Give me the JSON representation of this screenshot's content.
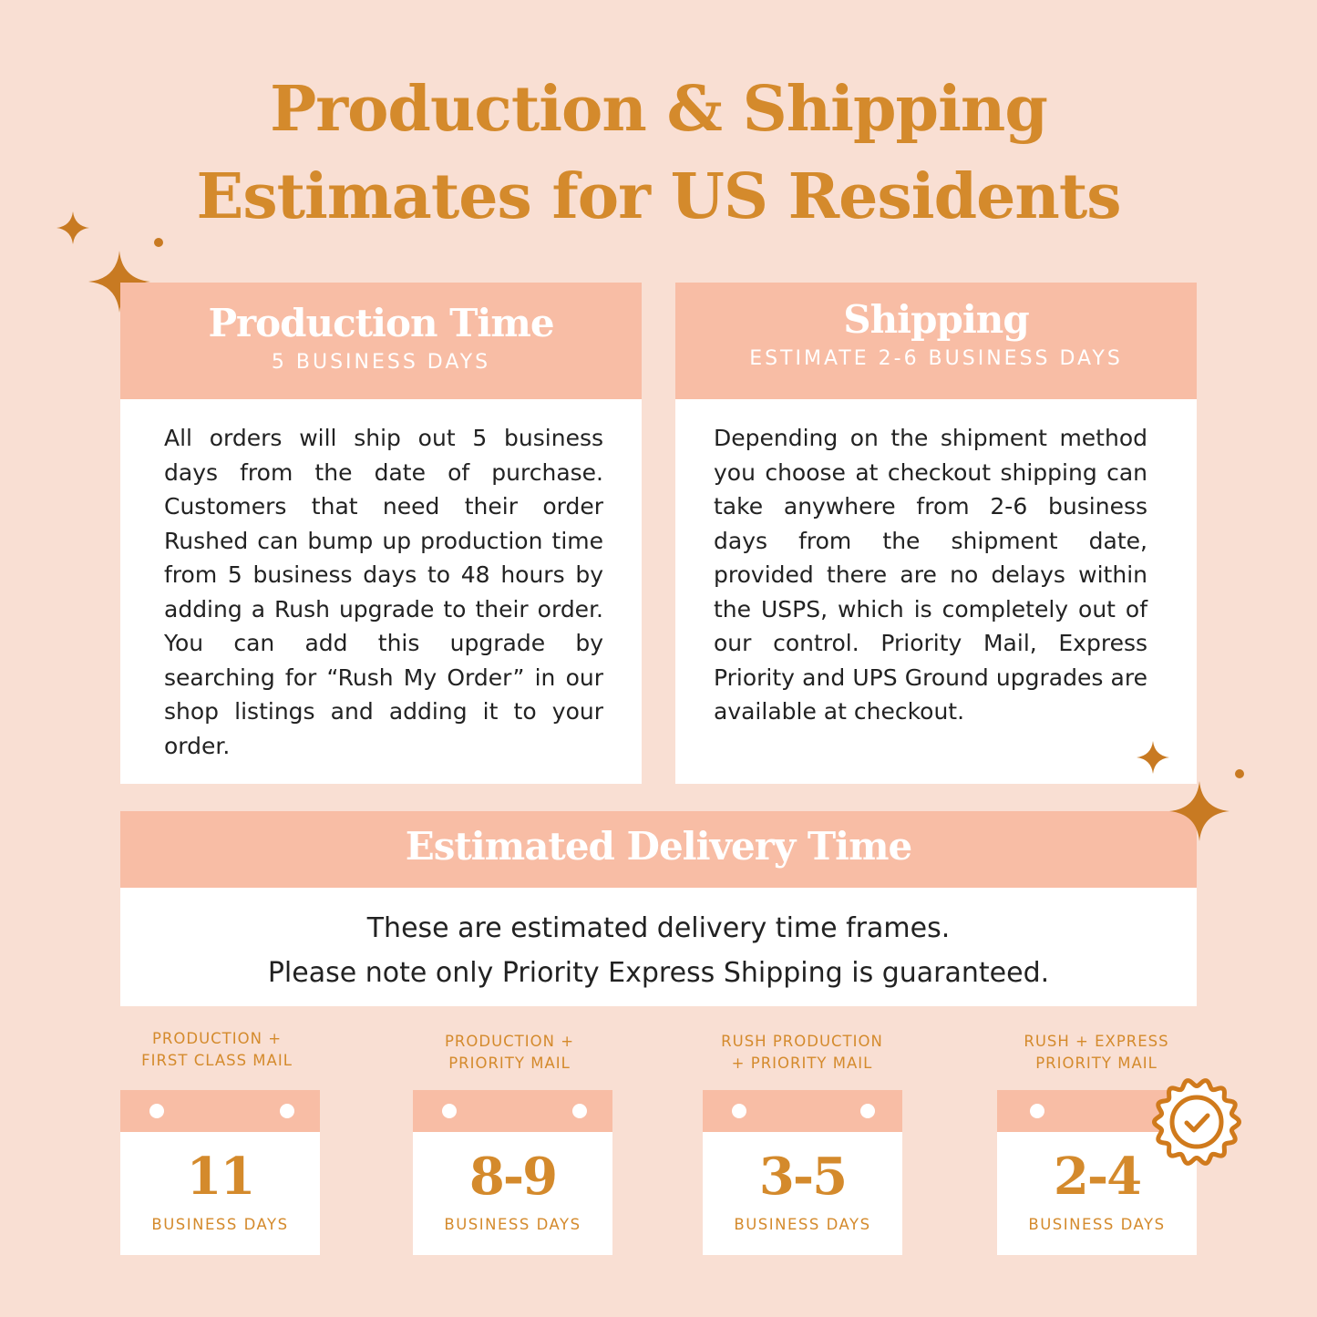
{
  "title": {
    "line1": "Production & Shipping",
    "line2": "Estimates for US Residents"
  },
  "production": {
    "heading": "Production Time",
    "subheading": "5 BUSINESS DAYS",
    "body": "All orders will ship out 5 business days from the date of purchase. Customers that need their order Rushed can bump up production time from 5 business days to 48 hours by adding a Rush upgrade to their order. You can add this upgrade by searching for “Rush My Order” in our shop listings and adding it to your order."
  },
  "shipping": {
    "heading": "Shipping",
    "subheading": "ESTIMATE 2-6 BUSINESS DAYS",
    "body": "Depending on the shipment method you choose at checkout shipping can take anywhere from 2-6 business days from the shipment date, provided there are no delays within the USPS, which is completely out of our control. Priority Mail, Express Priority and UPS Ground upgrades are available at checkout."
  },
  "delivery": {
    "heading": "Estimated Delivery Time",
    "line1": "These are estimated delivery time frames.",
    "line2": "Please note only Priority Express Shipping is guaranteed."
  },
  "options": [
    {
      "label1": "PRODUCTION +",
      "label2": "FIRST CLASS MAIL",
      "days": "11",
      "unit": "BUSINESS DAYS"
    },
    {
      "label1": "PRODUCTION +",
      "label2": "PRIORITY MAIL",
      "days": "8-9",
      "unit": "BUSINESS DAYS"
    },
    {
      "label1": "RUSH PRODUCTION",
      "label2": "+ PRIORITY MAIL",
      "days": "3-5",
      "unit": "BUSINESS DAYS"
    },
    {
      "label1": "RUSH + EXPRESS",
      "label2": "PRIORITY MAIL",
      "days": "2-4",
      "unit": "BUSINESS DAYS",
      "badge": "guaranteed-badge-icon"
    }
  ],
  "colors": {
    "background": "#f9dfd3",
    "header": "#f8bda5",
    "accent": "#d48a2c"
  }
}
